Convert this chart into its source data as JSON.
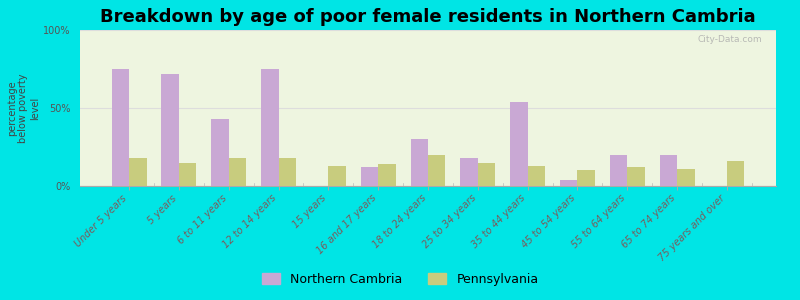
{
  "title": "Breakdown by age of poor female residents in Northern Cambria",
  "ylabel": "percentage\nbelow poverty\nlevel",
  "categories": [
    "Under 5 years",
    "5 years",
    "6 to 11 years",
    "12 to 14 years",
    "15 years",
    "16 and 17 years",
    "18 to 24 years",
    "25 to 34 years",
    "35 to 44 years",
    "45 to 54 years",
    "55 to 64 years",
    "65 to 74 years",
    "75 years and over"
  ],
  "northern_cambria": [
    75,
    72,
    43,
    75,
    0,
    12,
    30,
    18,
    54,
    4,
    20,
    20,
    0
  ],
  "pennsylvania": [
    18,
    15,
    18,
    18,
    13,
    14,
    20,
    15,
    13,
    10,
    12,
    11,
    16
  ],
  "nc_color": "#c9a8d4",
  "pa_color": "#c8cc7e",
  "background_outer": "#00e5e5",
  "background_plot": "#eef5e0",
  "yticks": [
    0,
    50,
    100
  ],
  "ylim": [
    0,
    100
  ],
  "bar_width": 0.35,
  "nc_label": "Northern Cambria",
  "pa_label": "Pennsylvania",
  "title_fontsize": 13,
  "axis_label_fontsize": 7,
  "tick_label_fontsize": 7,
  "legend_fontsize": 9
}
